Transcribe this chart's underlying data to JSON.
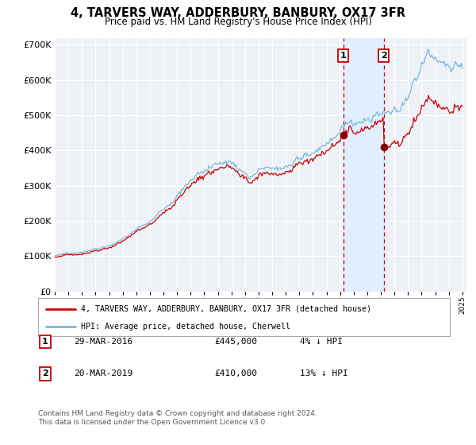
{
  "title": "4, TARVERS WAY, ADDERBURY, BANBURY, OX17 3FR",
  "subtitle": "Price paid vs. HM Land Registry's House Price Index (HPI)",
  "sale1_date": "29-MAR-2016",
  "sale1_price": 445000,
  "sale1_year": 2016.23,
  "sale2_date": "20-MAR-2019",
  "sale2_price": 410000,
  "sale2_year": 2019.21,
  "legend_line1": "4, TARVERS WAY, ADDERBURY, BANBURY, OX17 3FR (detached house)",
  "legend_line2": "HPI: Average price, detached house, Cherwell",
  "footnote": "Contains HM Land Registry data © Crown copyright and database right 2024.\nThis data is licensed under the Open Government Licence v3.0.",
  "hpi_color": "#7ab8d9",
  "price_color": "#cc0000",
  "marker_color": "#8b0000",
  "shade_color": "#ddeeff",
  "vline_color": "#cc0000",
  "plot_bg": "#eef2f7",
  "grid_color": "#ffffff",
  "ylim_min": 0,
  "ylim_max": 720000,
  "start_year": 1995,
  "end_year": 2025
}
